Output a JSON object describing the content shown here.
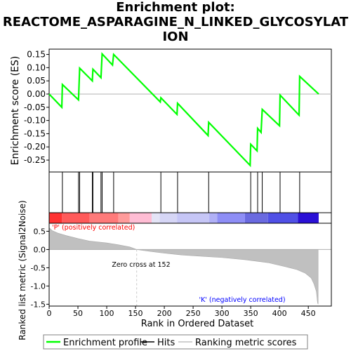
{
  "chart_data": {
    "type": "line",
    "title_lines": [
      "Enrichment plot:",
      "REACTOME_ASPARAGINE_N_LINKED_GLYCOSYLAT",
      "ION"
    ],
    "es_panel": {
      "ylabel": "Enrichment score (ES)",
      "ylim": [
        -0.295,
        0.17
      ],
      "yticks": [
        "0.15",
        "0.10",
        "0.05",
        "0.00",
        "-0.05",
        "-0.10",
        "-0.15",
        "-0.20",
        "-0.25"
      ],
      "ytick_values": [
        0.15,
        0.1,
        0.05,
        0.0,
        -0.05,
        -0.1,
        -0.15,
        -0.2,
        -0.25
      ],
      "series": [
        {
          "name": "Enrichment profile",
          "color": "#00ff00",
          "points": [
            [
              0,
              0
            ],
            [
              22,
              -0.05
            ],
            [
              23,
              0.036
            ],
            [
              51,
              -0.022
            ],
            [
              53,
              0.098
            ],
            [
              75,
              0.05
            ],
            [
              76,
              0.094
            ],
            [
              90,
              0.062
            ],
            [
              92,
              0.152
            ],
            [
              110,
              0.11
            ],
            [
              112,
              0.15
            ],
            [
              193,
              -0.03
            ],
            [
              194,
              -0.014
            ],
            [
              222,
              -0.077
            ],
            [
              223,
              -0.035
            ],
            [
              276,
              -0.157
            ],
            [
              277,
              -0.107
            ],
            [
              349,
              -0.27
            ],
            [
              350,
              -0.19
            ],
            [
              361,
              -0.215
            ],
            [
              362,
              -0.13
            ],
            [
              368,
              -0.145
            ],
            [
              370,
              -0.058
            ],
            [
              400,
              -0.12
            ],
            [
              401,
              -0.004
            ],
            [
              434,
              -0.08
            ],
            [
              435,
              0.067
            ],
            [
              468,
              0
            ]
          ]
        }
      ]
    },
    "hits": [
      23,
      51,
      53,
      75,
      76,
      90,
      92,
      112,
      194,
      223,
      277,
      350,
      362,
      370,
      401,
      435
    ],
    "rank_panel": {
      "ylabel": "Ranked list metric (Signal2Noise)",
      "xlabel": "Rank in Ordered Dataset",
      "xlim": [
        0,
        490
      ],
      "ylim": [
        -1.55,
        0.72
      ],
      "xticks": [
        "0",
        "50",
        "100",
        "150",
        "200",
        "250",
        "300",
        "350",
        "400",
        "450"
      ],
      "xtick_values": [
        0,
        50,
        100,
        150,
        200,
        250,
        300,
        350,
        400,
        450
      ],
      "yticks": [
        "0.5",
        "0.0",
        "-0.5",
        "-1.0",
        "-1.5"
      ],
      "ytick_values": [
        0.5,
        0.0,
        -0.5,
        -1.0,
        -1.5
      ],
      "curve": [
        [
          0,
          0.6
        ],
        [
          5,
          0.52
        ],
        [
          15,
          0.45
        ],
        [
          30,
          0.38
        ],
        [
          50,
          0.3
        ],
        [
          70,
          0.23
        ],
        [
          100,
          0.18
        ],
        [
          120,
          0.13
        ],
        [
          140,
          0.07
        ],
        [
          152,
          0
        ],
        [
          175,
          -0.05
        ],
        [
          200,
          -0.1
        ],
        [
          230,
          -0.15
        ],
        [
          260,
          -0.18
        ],
        [
          300,
          -0.22
        ],
        [
          340,
          -0.28
        ],
        [
          380,
          -0.36
        ],
        [
          410,
          -0.47
        ],
        [
          430,
          -0.55
        ],
        [
          445,
          -0.65
        ],
        [
          455,
          -0.78
        ],
        [
          460,
          -0.95
        ],
        [
          464,
          -1.15
        ],
        [
          466,
          -1.45
        ],
        [
          467,
          -1.5
        ]
      ],
      "zero_cross_label": "Zero cross at 152",
      "pos_label": "'P' (positively correlated)",
      "neg_label": "'K' (negatively correlated)",
      "pos_color": "#ff0000",
      "neg_color": "#0000ff"
    },
    "colorbar_segments": [
      {
        "from": 0,
        "to": 22,
        "color": "#ff3232"
      },
      {
        "from": 22,
        "to": 70,
        "color": "#ff5a5a"
      },
      {
        "from": 70,
        "to": 120,
        "color": "#ff7a7a"
      },
      {
        "from": 120,
        "to": 140,
        "color": "#ff9b9b"
      },
      {
        "from": 140,
        "to": 178,
        "color": "#ffbdd4"
      },
      {
        "from": 178,
        "to": 192,
        "color": "#e4e4f6"
      },
      {
        "from": 192,
        "to": 222,
        "color": "#d6d6f6"
      },
      {
        "from": 222,
        "to": 278,
        "color": "#c6c6f6"
      },
      {
        "from": 278,
        "to": 292,
        "color": "#b0b0f6"
      },
      {
        "from": 292,
        "to": 340,
        "color": "#8e8ef6"
      },
      {
        "from": 340,
        "to": 380,
        "color": "#6a6ae0"
      },
      {
        "from": 380,
        "to": 432,
        "color": "#5050e6"
      },
      {
        "from": 432,
        "to": 468,
        "color": "#2a10d6"
      }
    ],
    "legend": [
      {
        "label": "Enrichment profile",
        "color": "#00ff00"
      },
      {
        "label": "Hits",
        "color": "#000000"
      },
      {
        "label": "Ranking metric scores",
        "color": "#c0c0c0"
      }
    ]
  }
}
